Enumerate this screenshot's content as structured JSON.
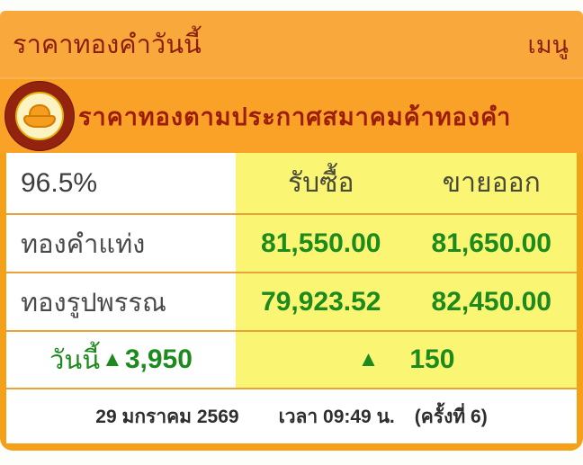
{
  "colors": {
    "topbar_orange": "#f9a93c",
    "banner_orange": "#f9a227",
    "frame_orange": "#f5a019",
    "cell_yellow": "#faf573",
    "text_maroon": "#8a1f0e",
    "price_green": "#1c8a1c",
    "text_dark": "#3d3d3d"
  },
  "header": {
    "title": "ราคาทองคำวันนี้",
    "menu_label": "เมนู"
  },
  "banner": {
    "logo_name": "gold-traders-association-logo",
    "text": "ราคาทองตามประกาศสมาคมค้าทองคำ"
  },
  "table": {
    "header": {
      "purity": "96.5%",
      "buy_col": "รับซื้อ",
      "sell_col": "ขายออก"
    },
    "rows": [
      {
        "label": "ทองคำแท่ง",
        "buy": "81,550.00",
        "sell": "81,650.00"
      },
      {
        "label": "ทองรูปพรรณ",
        "buy": "79,923.52",
        "sell": "82,450.00"
      }
    ],
    "change": {
      "label": "วันนี้",
      "direction": "up",
      "arrow": "▲",
      "bar_change": "3,950",
      "ornament_change": "150"
    }
  },
  "footer": {
    "date": "29 มกราคม 2569",
    "time": "เวลา 09:49 น.",
    "round": "(ครั้งที่ 6)"
  }
}
